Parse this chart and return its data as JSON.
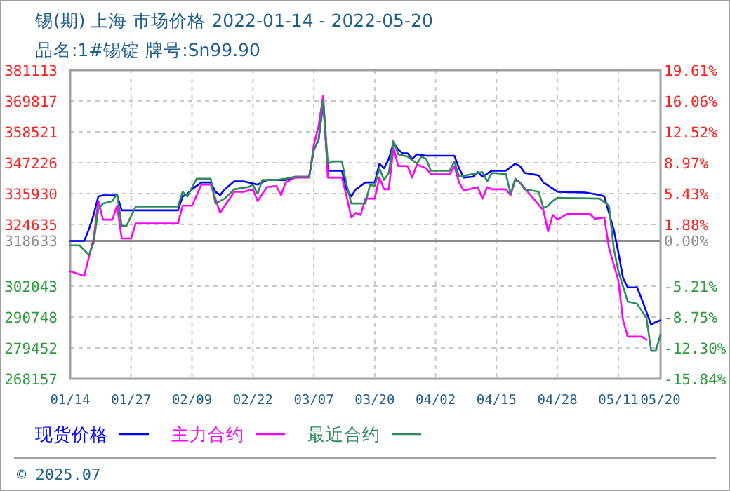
{
  "chart_data": {
    "type": "line",
    "title": "锡(期) 上海 市场价格 2022-01-14 - 2022-05-20",
    "subtitle": "品名:1#锡锭 牌号:Sn99.90",
    "annotations": [
      "© 2025.07"
    ],
    "xlim": [
      "2022-01-14",
      "2022-05-20"
    ],
    "xticks": [
      {
        "value": "2022-01-14",
        "label": "01/14"
      },
      {
        "value": "2022-01-27",
        "label": "01/27"
      },
      {
        "value": "2022-02-09",
        "label": "02/09"
      },
      {
        "value": "2022-02-22",
        "label": "02/22"
      },
      {
        "value": "2022-03-07",
        "label": "03/07"
      },
      {
        "value": "2022-03-20",
        "label": "03/20"
      },
      {
        "value": "2022-04-02",
        "label": "04/02"
      },
      {
        "value": "2022-04-15",
        "label": "04/15"
      },
      {
        "value": "2022-04-28",
        "label": "04/28"
      },
      {
        "value": "2022-05-11",
        "label": "05/11"
      },
      {
        "value": "2022-05-20",
        "label": "05/20"
      }
    ],
    "ylim": [
      268157,
      381113
    ],
    "yticks": [
      381113,
      369817,
      358521,
      347226,
      335930,
      324635,
      318633,
      302043,
      290748,
      279452,
      268157
    ],
    "y2lim": [
      -15.84,
      19.61
    ],
    "y2ticks": [
      {
        "value": 19.61,
        "label": "19.61%"
      },
      {
        "value": 16.06,
        "label": "16.06%"
      },
      {
        "value": 12.52,
        "label": "12.52%"
      },
      {
        "value": 8.97,
        "label": "8.97%"
      },
      {
        "value": 5.43,
        "label": "5.43%"
      },
      {
        "value": 1.88,
        "label": "1.88%"
      },
      {
        "value": 0,
        "label": "0.00%"
      },
      {
        "value": -5.21,
        "label": "-5.21%"
      },
      {
        "value": -8.75,
        "label": "-8.75%"
      },
      {
        "value": -12.3,
        "label": "-12.30%"
      },
      {
        "value": -15.84,
        "label": "-15.84%"
      }
    ],
    "ref_lines": [
      {
        "axis": "y",
        "value": 318633,
        "color": "#8c8c8c"
      }
    ],
    "grid": true,
    "legend": "bottom",
    "marker": "none",
    "line_style": "solid",
    "series": [
      {
        "name": "现货价格",
        "color": "#0000ff",
        "x": [
          "2022-01-14",
          "2022-01-17",
          "2022-01-18",
          "2022-01-19",
          "2022-01-20",
          "2022-01-21",
          "2022-01-24",
          "2022-01-25",
          "2022-02-06",
          "2022-02-07",
          "2022-02-08",
          "2022-02-09",
          "2022-02-11",
          "2022-02-13",
          "2022-02-14",
          "2022-02-15",
          "2022-02-16",
          "2022-02-18",
          "2022-02-20",
          "2022-02-23",
          "2022-02-25",
          "2022-03-01",
          "2022-03-03",
          "2022-03-06",
          "2022-03-07",
          "2022-03-08",
          "2022-03-09",
          "2022-03-10",
          "2022-03-13",
          "2022-03-14",
          "2022-03-15",
          "2022-03-16",
          "2022-03-18",
          "2022-03-20",
          "2022-03-21",
          "2022-03-22",
          "2022-03-23",
          "2022-03-24",
          "2022-03-25",
          "2022-03-26",
          "2022-03-27",
          "2022-03-28",
          "2022-03-29",
          "2022-03-31",
          "2022-04-06",
          "2022-04-07",
          "2022-04-08",
          "2022-04-10",
          "2022-04-11",
          "2022-04-12",
          "2022-04-14",
          "2022-04-17",
          "2022-04-19",
          "2022-04-20",
          "2022-04-21",
          "2022-04-24",
          "2022-04-25",
          "2022-04-28",
          "2022-05-04",
          "2022-05-07",
          "2022-05-08",
          "2022-05-10",
          "2022-05-11",
          "2022-05-12",
          "2022-05-13",
          "2022-05-15",
          "2022-05-16",
          "2022-05-18",
          "2022-05-19",
          "2022-05-20"
        ],
        "values": [
          318600,
          318600,
          322900,
          328100,
          334900,
          335300,
          335300,
          329800,
          329800,
          334900,
          335800,
          337500,
          340000,
          340000,
          336600,
          335400,
          337500,
          340400,
          340400,
          339200,
          340900,
          340900,
          342100,
          342100,
          352000,
          355400,
          369100,
          344300,
          344300,
          337500,
          334900,
          337500,
          340000,
          340000,
          346900,
          345200,
          348600,
          354600,
          352000,
          350700,
          350700,
          348600,
          350300,
          349800,
          349800,
          345200,
          341800,
          342100,
          343800,
          342100,
          344300,
          344300,
          346900,
          346000,
          343500,
          342600,
          340000,
          336600,
          336300,
          335400,
          334900,
          322900,
          314400,
          305000,
          301600,
          301600,
          297300,
          287900,
          288900,
          289600
        ]
      },
      {
        "name": "主力合约",
        "color": "#ff00ff",
        "x": [
          "2022-01-14",
          "2022-01-17",
          "2022-01-18",
          "2022-01-19",
          "2022-01-20",
          "2022-01-21",
          "2022-01-23",
          "2022-01-24",
          "2022-01-25",
          "2022-01-27",
          "2022-01-28",
          "2022-02-06",
          "2022-02-07",
          "2022-02-09",
          "2022-02-11",
          "2022-02-13",
          "2022-02-15",
          "2022-02-16",
          "2022-02-18",
          "2022-02-20",
          "2022-02-22",
          "2022-02-23",
          "2022-02-25",
          "2022-02-27",
          "2022-02-28",
          "2022-03-01",
          "2022-03-03",
          "2022-03-06",
          "2022-03-07",
          "2022-03-08",
          "2022-03-09",
          "2022-03-10",
          "2022-03-13",
          "2022-03-14",
          "2022-03-15",
          "2022-03-16",
          "2022-03-17",
          "2022-03-18",
          "2022-03-20",
          "2022-03-21",
          "2022-03-22",
          "2022-03-23",
          "2022-03-24",
          "2022-03-25",
          "2022-03-27",
          "2022-03-28",
          "2022-03-29",
          "2022-03-31",
          "2022-04-01",
          "2022-04-05",
          "2022-04-06",
          "2022-04-07",
          "2022-04-08",
          "2022-04-11",
          "2022-04-12",
          "2022-04-13",
          "2022-04-14",
          "2022-04-17",
          "2022-04-18",
          "2022-04-19",
          "2022-04-20",
          "2022-04-25",
          "2022-04-26",
          "2022-04-27",
          "2022-04-28",
          "2022-04-30",
          "2022-05-05",
          "2022-05-06",
          "2022-05-08",
          "2022-05-09",
          "2022-05-11",
          "2022-05-12",
          "2022-05-13",
          "2022-05-16",
          "2022-05-17"
        ],
        "values": [
          307500,
          305800,
          312700,
          319500,
          333200,
          326400,
          326400,
          331500,
          319500,
          319500,
          325000,
          325000,
          331500,
          331500,
          339200,
          339200,
          328900,
          331500,
          336600,
          336600,
          337500,
          333200,
          338300,
          338700,
          335400,
          340000,
          341800,
          341800,
          353700,
          360600,
          371700,
          341800,
          341800,
          334900,
          327200,
          328900,
          328100,
          334100,
          334100,
          341800,
          337500,
          337500,
          352900,
          346000,
          346000,
          341800,
          346600,
          345200,
          343000,
          343000,
          346000,
          340000,
          337000,
          338300,
          334100,
          338300,
          337500,
          337500,
          335400,
          340900,
          340000,
          329800,
          322100,
          328100,
          326400,
          328400,
          328400,
          326700,
          327200,
          316100,
          304100,
          289600,
          283600,
          283600,
          282400
        ]
      },
      {
        "name": "最近合约",
        "color": "#2e8b57",
        "x": [
          "2022-01-14",
          "2022-01-16",
          "2022-01-18",
          "2022-01-19",
          "2022-01-20",
          "2022-01-21",
          "2022-01-23",
          "2022-01-24",
          "2022-01-25",
          "2022-01-26",
          "2022-01-28",
          "2022-02-06",
          "2022-02-07",
          "2022-02-08",
          "2022-02-10",
          "2022-02-13",
          "2022-02-14",
          "2022-02-16",
          "2022-02-18",
          "2022-02-21",
          "2022-02-22",
          "2022-02-23",
          "2022-02-24",
          "2022-02-27",
          "2022-03-01",
          "2022-03-03",
          "2022-03-06",
          "2022-03-07",
          "2022-03-08",
          "2022-03-09",
          "2022-03-10",
          "2022-03-11",
          "2022-03-13",
          "2022-03-14",
          "2022-03-15",
          "2022-03-18",
          "2022-03-19",
          "2022-03-20",
          "2022-03-21",
          "2022-03-22",
          "2022-03-23",
          "2022-03-24",
          "2022-03-25",
          "2022-03-27",
          "2022-03-29",
          "2022-03-30",
          "2022-03-31",
          "2022-04-01",
          "2022-04-05",
          "2022-04-06",
          "2022-04-07",
          "2022-04-12",
          "2022-04-13",
          "2022-04-14",
          "2022-04-17",
          "2022-04-18",
          "2022-04-19",
          "2022-04-20",
          "2022-04-21",
          "2022-04-24",
          "2022-04-25",
          "2022-04-26",
          "2022-04-27",
          "2022-04-28",
          "2022-05-07",
          "2022-05-09",
          "2022-05-10",
          "2022-05-11",
          "2022-05-13",
          "2022-05-15",
          "2022-05-17",
          "2022-05-18",
          "2022-05-19",
          "2022-05-20"
        ],
        "values": [
          317000,
          317000,
          313500,
          317800,
          330300,
          332300,
          333200,
          335800,
          324100,
          324100,
          331200,
          331200,
          336600,
          334900,
          341400,
          341400,
          332300,
          334100,
          337500,
          338300,
          339200,
          335800,
          340900,
          340900,
          341400,
          342100,
          342100,
          352000,
          355400,
          370000,
          346900,
          347700,
          347700,
          339200,
          332300,
          332300,
          339200,
          338700,
          345200,
          340900,
          343500,
          355400,
          350300,
          349500,
          346900,
          349500,
          348600,
          344300,
          344300,
          347700,
          342100,
          343800,
          340400,
          343500,
          343100,
          335800,
          341400,
          340000,
          337500,
          336600,
          330600,
          331500,
          333200,
          334400,
          334100,
          331500,
          316100,
          307500,
          296400,
          295600,
          290400,
          278400,
          278400,
          284400
        ]
      }
    ]
  }
}
